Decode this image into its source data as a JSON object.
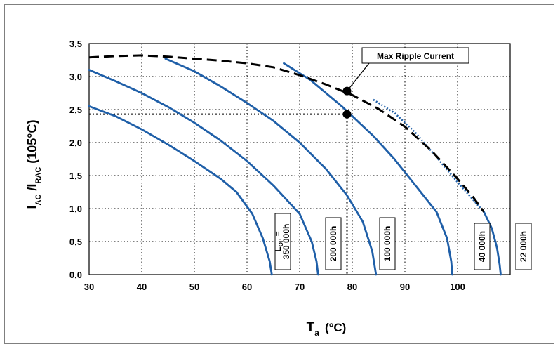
{
  "chart_data": {
    "type": "line",
    "xlabel_main": "T",
    "xlabel_sub": "a",
    "xlabel_unit": "(°C)",
    "ylabel_i1": "I",
    "ylabel_s1": "AC",
    "ylabel_mid": " /I",
    "ylabel_s2": "RAC",
    "ylabel_unit": " (105°C)",
    "xlim": [
      30,
      110
    ],
    "ylim": [
      0,
      3.5
    ],
    "xticks": [
      "30",
      "40",
      "50",
      "60",
      "70",
      "80",
      "90",
      "100"
    ],
    "yticks": [
      "0,0",
      "0,5",
      "1,0",
      "1,5",
      "2,0",
      "2,5",
      "3,0",
      "3,5"
    ],
    "grid": true,
    "colors": {
      "curve": "#1f5fa8",
      "max": "#000000",
      "grid": "#000000"
    },
    "series": [
      {
        "label_l": "L",
        "label_sub": "OP",
        "label_eq": " =",
        "label_2": "350 000h",
        "points": [
          [
            30,
            2.55
          ],
          [
            35,
            2.4
          ],
          [
            40,
            2.2
          ],
          [
            45,
            1.97
          ],
          [
            50,
            1.72
          ],
          [
            55,
            1.45
          ],
          [
            58,
            1.25
          ],
          [
            61,
            0.92
          ],
          [
            63,
            0.55
          ],
          [
            64.3,
            0.2
          ],
          [
            64.7,
            0.0
          ]
        ]
      },
      {
        "label": "200 000h",
        "points": [
          [
            30,
            3.1
          ],
          [
            35,
            2.93
          ],
          [
            40,
            2.75
          ],
          [
            45,
            2.54
          ],
          [
            50,
            2.3
          ],
          [
            55,
            2.03
          ],
          [
            60,
            1.72
          ],
          [
            65,
            1.35
          ],
          [
            70,
            0.92
          ],
          [
            72.3,
            0.5
          ],
          [
            73.2,
            0.2
          ],
          [
            73.5,
            0.0
          ]
        ]
      },
      {
        "label": "100 000h",
        "points": [
          [
            44.5,
            3.27
          ],
          [
            50,
            3.08
          ],
          [
            55,
            2.85
          ],
          [
            60,
            2.6
          ],
          [
            65,
            2.33
          ],
          [
            70,
            2.0
          ],
          [
            75,
            1.6
          ],
          [
            79,
            1.2
          ],
          [
            82,
            0.8
          ],
          [
            83.8,
            0.35
          ],
          [
            84.5,
            0.0
          ]
        ]
      },
      {
        "label": "40 000h",
        "points": [
          [
            67,
            3.2
          ],
          [
            72,
            2.95
          ],
          [
            78,
            2.55
          ],
          [
            84,
            2.1
          ],
          [
            88,
            1.75
          ],
          [
            92,
            1.35
          ],
          [
            96,
            0.95
          ],
          [
            98,
            0.55
          ],
          [
            98.8,
            0.2
          ],
          [
            99,
            0.0
          ]
        ]
      },
      {
        "label": "22 000h",
        "points": [
          [
            105,
            0.95
          ],
          [
            106.5,
            0.7
          ],
          [
            107.5,
            0.4
          ],
          [
            108,
            0.15
          ],
          [
            108.2,
            0.0
          ]
        ]
      }
    ],
    "max_dotted": [
      [
        84,
        2.65
      ],
      [
        88,
        2.45
      ],
      [
        92,
        2.15
      ],
      [
        96,
        1.78
      ],
      [
        100,
        1.4
      ],
      [
        103,
        1.13
      ],
      [
        105,
        0.95
      ]
    ],
    "max_ripple": {
      "label": "Max Ripple Current",
      "points": [
        [
          30,
          3.29
        ],
        [
          35,
          3.31
        ],
        [
          40,
          3.32
        ],
        [
          45,
          3.3
        ],
        [
          50,
          3.27
        ],
        [
          55,
          3.24
        ],
        [
          60,
          3.2
        ],
        [
          65,
          3.14
        ],
        [
          70,
          3.02
        ],
        [
          75,
          2.88
        ],
        [
          80,
          2.72
        ],
        [
          85,
          2.51
        ],
        [
          90,
          2.24
        ],
        [
          95,
          1.88
        ],
        [
          100,
          1.45
        ],
        [
          103,
          1.17
        ],
        [
          105,
          0.95
        ]
      ]
    },
    "marker_points": [
      [
        79,
        2.78
      ],
      [
        79,
        2.43
      ]
    ],
    "reference": {
      "x": 79,
      "y": 2.43
    }
  }
}
